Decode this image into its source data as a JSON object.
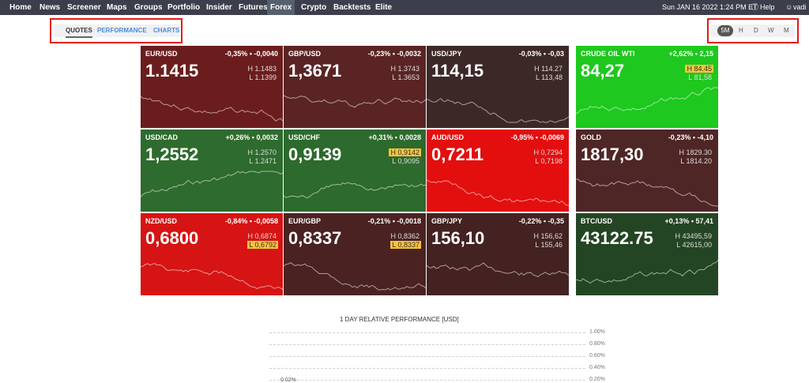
{
  "nav": {
    "items": [
      "Home",
      "News",
      "Screener",
      "Maps",
      "Groups",
      "Portfolio",
      "Insider",
      "Futures",
      "Forex",
      "Crypto",
      "Backtests",
      "Elite"
    ],
    "active": "Forex",
    "datetime": "Sun JAN 16 2022 1:24 PM ET",
    "help": "Help",
    "user": "vadi"
  },
  "subnav": {
    "tabs": [
      "QUOTES",
      "PERFORMANCE",
      "CHARTS"
    ],
    "active": "QUOTES"
  },
  "timeframes": {
    "items": [
      "5M",
      "H",
      "D",
      "W",
      "M"
    ],
    "active": "5M"
  },
  "tiles": [
    {
      "symbol": "EUR/USD",
      "change": "-0,35% • -0,0040",
      "price": "1.1415",
      "high": "H 1.1483",
      "low": "L 1.1399",
      "bg": "#6b1d1d",
      "high_hl": false,
      "low_hl": false
    },
    {
      "symbol": "GBP/USD",
      "change": "-0,23% • -0,0032",
      "price": "1,3671",
      "high": "H 1.3743",
      "low": "L 1.3653",
      "bg": "#5a2424",
      "high_hl": false,
      "low_hl": false
    },
    {
      "symbol": "USD/JPY",
      "change": "-0,03% • -0,03",
      "price": "114,15",
      "high": "H 114.27",
      "low": "L 113,48",
      "bg": "#3d2828",
      "high_hl": false,
      "low_hl": false
    },
    {
      "symbol": "CRUDE OIL WTI",
      "change": "+2,62% • 2,15",
      "price": "84,27",
      "high": "H 84.45",
      "low": "L 81,58",
      "bg": "#1ec81e",
      "high_hl": true,
      "low_hl": false
    },
    {
      "symbol": "USD/CAD",
      "change": "+0,26% • 0,0032",
      "price": "1,2552",
      "high": "H 1.2570",
      "low": "L 1.2471",
      "bg": "#2e6b2e",
      "high_hl": false,
      "low_hl": false
    },
    {
      "symbol": "USD/CHF",
      "change": "+0,31% • 0,0028",
      "price": "0,9139",
      "high": "H 0,9142",
      "low": "L 0,9095",
      "bg": "#2d6a2d",
      "high_hl": true,
      "low_hl": false
    },
    {
      "symbol": "AUD/USD",
      "change": "-0,95% • -0,0069",
      "price": "0,7211",
      "high": "H 0,7294",
      "low": "L 0,7198",
      "bg": "#e30f0f",
      "high_hl": false,
      "low_hl": false
    },
    {
      "symbol": "GOLD",
      "change": "-0,23% • -4,10",
      "price": "1817,30",
      "high": "H 1829.30",
      "low": "L 1814.20",
      "bg": "#4f2626",
      "high_hl": false,
      "low_hl": false
    },
    {
      "symbol": "NZD/USD",
      "change": "-0,84% • -0,0058",
      "price": "0,6800",
      "high": "H 0,6874",
      "low": "L 0,6792",
      "bg": "#d61414",
      "high_hl": false,
      "low_hl": true
    },
    {
      "symbol": "EUR/GBP",
      "change": "-0,21% • -0,0018",
      "price": "0,8337",
      "high": "H 0,8362",
      "low": "L 0,8337",
      "bg": "#4a2222",
      "high_hl": false,
      "low_hl": true
    },
    {
      "symbol": "GBP/JPY",
      "change": "-0,22% • -0,35",
      "price": "156,10",
      "high": "H 156,62",
      "low": "L 155,46",
      "bg": "#442222",
      "high_hl": false,
      "low_hl": false
    },
    {
      "symbol": "BTC/USD",
      "change": "+0,13% • 57,41",
      "price": "43122.75",
      "high": "H 43495,59",
      "low": "L 42615,00",
      "bg": "#244524",
      "high_hl": false,
      "low_hl": false
    }
  ],
  "performance": {
    "title": "1 DAY RELATIVE PERFORMANCE [USD]",
    "yticks": [
      "1.00%",
      "0.80%",
      "0.60%",
      "0.40%",
      "0.20%"
    ],
    "first_label": "0.02%"
  }
}
